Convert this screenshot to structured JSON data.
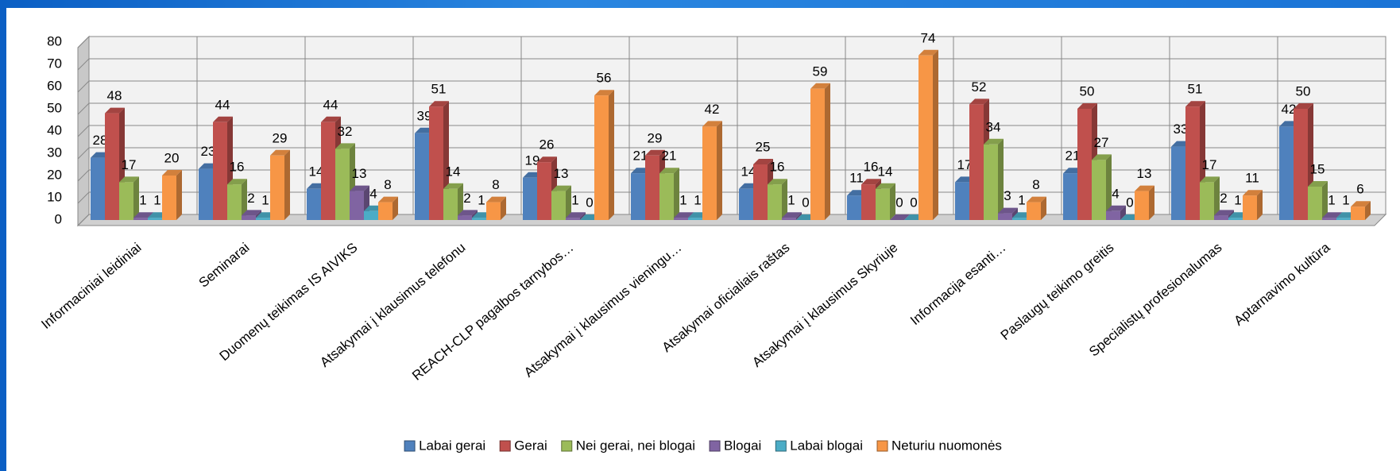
{
  "chart_data": {
    "type": "bar3d",
    "categories": [
      "Informaciniai leidiniai",
      "Seminarai",
      "Duomenų teikimas IS AIVIKS",
      "Atsakymai į klausimus telefonu",
      "REACH-CLP pagalbos tarnybos…",
      "Atsakymai į klausimus vieningu…",
      "Atsakymai oficialiais raštas",
      "Atsakymai į klausimus Skyriuje",
      "Informacija esanti…",
      "Paslaugų teikimo greitis",
      "Specialistų profesionalumas",
      "Aptarnavimo kultūra"
    ],
    "series": [
      {
        "name": "Labai gerai",
        "color": "#4f81bd",
        "values": [
          28,
          23,
          14,
          39,
          19,
          21,
          14,
          11,
          17,
          21,
          33,
          42
        ]
      },
      {
        "name": "Gerai",
        "color": "#c0504d",
        "values": [
          48,
          44,
          44,
          51,
          26,
          29,
          25,
          16,
          52,
          50,
          51,
          50
        ]
      },
      {
        "name": "Nei gerai, nei blogai",
        "color": "#9bbb59",
        "values": [
          17,
          16,
          32,
          14,
          13,
          21,
          16,
          14,
          34,
          27,
          17,
          15
        ]
      },
      {
        "name": "Blogai",
        "color": "#8064a2",
        "values": [
          1,
          2,
          13,
          2,
          1,
          1,
          1,
          0,
          3,
          4,
          2,
          1
        ]
      },
      {
        "name": "Labai blogai",
        "color": "#4bacc6",
        "values": [
          1,
          1,
          4,
          1,
          0,
          1,
          0,
          0,
          1,
          0,
          1,
          1
        ]
      },
      {
        "name": "Neturiu nuomonės",
        "color": "#f79646",
        "values": [
          20,
          29,
          8,
          8,
          56,
          42,
          59,
          74,
          8,
          13,
          11,
          6
        ]
      }
    ],
    "ylim": [
      0,
      80
    ],
    "yticks": [
      0,
      10,
      20,
      30,
      40,
      50,
      60,
      70,
      80
    ],
    "grid": true,
    "legend": "bottom"
  }
}
